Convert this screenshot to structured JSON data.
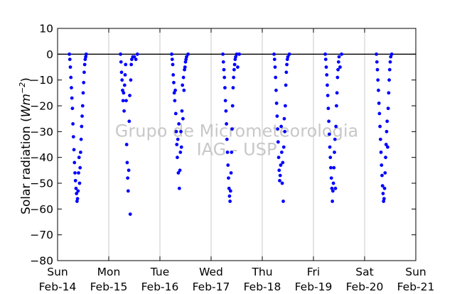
{
  "chart_data": {
    "type": "scatter",
    "ylabel_prefix": "Solar radiation (",
    "ylabel_unit": "Wm",
    "ylabel_exp": "−2",
    "ylabel_suffix": ")",
    "xlabel": "",
    "ylim": [
      -80,
      10
    ],
    "yticks": [
      10,
      0,
      -10,
      -20,
      -30,
      -40,
      -50,
      -60,
      -70,
      -80
    ],
    "xlim": [
      0,
      7
    ],
    "xticks": [
      {
        "x": 0,
        "day": "Sun",
        "date": "Feb-14"
      },
      {
        "x": 1,
        "day": "Mon",
        "date": "Feb-15"
      },
      {
        "x": 2,
        "day": "Tue",
        "date": "Feb-16"
      },
      {
        "x": 3,
        "day": "Wed",
        "date": "Feb-17"
      },
      {
        "x": 4,
        "day": "Thu",
        "date": "Feb-18"
      },
      {
        "x": 5,
        "day": "Fri",
        "date": "Feb-19"
      },
      {
        "x": 6,
        "day": "Sat",
        "date": "Feb-20"
      },
      {
        "x": 7,
        "day": "Sun",
        "date": "Feb-21"
      }
    ],
    "grid": "vertical",
    "zero_line": 0,
    "marker_color": "#0000ff",
    "watermark": [
      "Grupo de Micrometeorologia",
      "IAG - USP"
    ],
    "series": [
      {
        "points": [
          [
            0.23,
            0
          ],
          [
            0.24,
            -2
          ],
          [
            0.25,
            -5
          ],
          [
            0.26,
            -9
          ],
          [
            0.27,
            -13
          ],
          [
            0.28,
            -17
          ],
          [
            0.29,
            -21
          ],
          [
            0.3,
            -27
          ],
          [
            0.31,
            -32
          ],
          [
            0.32,
            -37
          ],
          [
            0.33,
            -42
          ],
          [
            0.34,
            -46
          ],
          [
            0.35,
            -49
          ],
          [
            0.36,
            -52
          ],
          [
            0.37,
            -54
          ],
          [
            0.38,
            -57
          ],
          [
            0.39,
            -56
          ],
          [
            0.4,
            -53
          ],
          [
            0.41,
            -46
          ],
          [
            0.42,
            -40
          ],
          [
            0.43,
            -50
          ],
          [
            0.44,
            -44
          ],
          [
            0.45,
            -38
          ],
          [
            0.46,
            -33
          ],
          [
            0.47,
            -28
          ],
          [
            0.48,
            -24
          ],
          [
            0.49,
            -20
          ],
          [
            0.5,
            -15
          ],
          [
            0.51,
            -11
          ],
          [
            0.52,
            -7
          ],
          [
            0.53,
            -4
          ],
          [
            0.54,
            -2
          ],
          [
            0.55,
            -1
          ],
          [
            0.56,
            0
          ],
          [
            1.23,
            0
          ],
          [
            1.24,
            -3
          ],
          [
            1.25,
            -7
          ],
          [
            1.26,
            -10
          ],
          [
            1.27,
            -14
          ],
          [
            1.28,
            -18
          ],
          [
            1.29,
            -15
          ],
          [
            1.3,
            -22
          ],
          [
            1.31,
            -12
          ],
          [
            1.32,
            -8
          ],
          [
            1.33,
            -4
          ],
          [
            1.34,
            -18
          ],
          [
            1.35,
            -35
          ],
          [
            1.36,
            -42
          ],
          [
            1.37,
            -48
          ],
          [
            1.38,
            -53
          ],
          [
            1.39,
            -45
          ],
          [
            1.4,
            -26
          ],
          [
            1.41,
            -16
          ],
          [
            1.42,
            -62
          ],
          [
            1.43,
            -10
          ],
          [
            1.44,
            -4
          ],
          [
            1.45,
            -2
          ],
          [
            1.47,
            -1
          ],
          [
            1.5,
            -1
          ],
          [
            1.53,
            -2
          ],
          [
            1.56,
            0
          ],
          [
            2.23,
            0
          ],
          [
            2.24,
            -2
          ],
          [
            2.25,
            -4
          ],
          [
            2.26,
            -8
          ],
          [
            2.27,
            -11
          ],
          [
            2.28,
            -15
          ],
          [
            2.29,
            -18
          ],
          [
            2.3,
            -14
          ],
          [
            2.31,
            -23
          ],
          [
            2.32,
            -30
          ],
          [
            2.33,
            -35
          ],
          [
            2.34,
            -40
          ],
          [
            2.35,
            -33
          ],
          [
            2.36,
            -46
          ],
          [
            2.37,
            -27
          ],
          [
            2.38,
            -52
          ],
          [
            2.39,
            -45
          ],
          [
            2.4,
            -38
          ],
          [
            2.41,
            -30
          ],
          [
            2.42,
            -36
          ],
          [
            2.43,
            -22
          ],
          [
            2.44,
            -12
          ],
          [
            2.45,
            -25
          ],
          [
            2.46,
            -9
          ],
          [
            2.47,
            -14
          ],
          [
            2.48,
            -6
          ],
          [
            2.49,
            -5
          ],
          [
            2.5,
            -3
          ],
          [
            2.51,
            -2
          ],
          [
            2.52,
            -1
          ],
          [
            2.55,
            0
          ],
          [
            3.23,
            0
          ],
          [
            3.24,
            -3
          ],
          [
            3.25,
            -6
          ],
          [
            3.26,
            -9
          ],
          [
            3.27,
            -13
          ],
          [
            3.28,
            -18
          ],
          [
            3.29,
            -22
          ],
          [
            3.3,
            -27
          ],
          [
            3.31,
            -33
          ],
          [
            3.32,
            -38
          ],
          [
            3.33,
            -43
          ],
          [
            3.34,
            -48
          ],
          [
            3.35,
            -52
          ],
          [
            3.36,
            -55
          ],
          [
            3.37,
            -57
          ],
          [
            3.38,
            -53
          ],
          [
            3.39,
            -46
          ],
          [
            3.4,
            -38
          ],
          [
            3.41,
            -29
          ],
          [
            3.42,
            -20
          ],
          [
            3.43,
            -13
          ],
          [
            3.44,
            -9
          ],
          [
            3.45,
            -6
          ],
          [
            3.46,
            -4
          ],
          [
            3.47,
            -2
          ],
          [
            3.48,
            -1
          ],
          [
            3.5,
            0
          ],
          [
            3.52,
            -5
          ],
          [
            3.55,
            0
          ],
          [
            4.23,
            0
          ],
          [
            4.24,
            -2
          ],
          [
            4.25,
            -5
          ],
          [
            4.26,
            -9
          ],
          [
            4.27,
            -14
          ],
          [
            4.28,
            -19
          ],
          [
            4.29,
            -24
          ],
          [
            4.3,
            -29
          ],
          [
            4.31,
            -34
          ],
          [
            4.32,
            -40
          ],
          [
            4.33,
            -45
          ],
          [
            4.34,
            -49
          ],
          [
            4.35,
            -47
          ],
          [
            4.36,
            -43
          ],
          [
            4.37,
            -28
          ],
          [
            4.38,
            -38
          ],
          [
            4.39,
            -50
          ],
          [
            4.4,
            -42
          ],
          [
            4.41,
            -57
          ],
          [
            4.42,
            -36
          ],
          [
            4.43,
            -25
          ],
          [
            4.44,
            -30
          ],
          [
            4.45,
            -20
          ],
          [
            4.46,
            -12
          ],
          [
            4.47,
            -7
          ],
          [
            4.48,
            -4
          ],
          [
            4.49,
            -2
          ],
          [
            4.5,
            -1
          ],
          [
            4.53,
            0
          ],
          [
            5.23,
            0
          ],
          [
            5.24,
            -2
          ],
          [
            5.25,
            -5
          ],
          [
            5.26,
            -8
          ],
          [
            5.27,
            -12
          ],
          [
            5.28,
            -16
          ],
          [
            5.29,
            -21
          ],
          [
            5.3,
            -26
          ],
          [
            5.31,
            -31
          ],
          [
            5.32,
            -36
          ],
          [
            5.33,
            -40
          ],
          [
            5.34,
            -44
          ],
          [
            5.35,
            -48
          ],
          [
            5.36,
            -52
          ],
          [
            5.37,
            -57
          ],
          [
            5.38,
            -53
          ],
          [
            5.39,
            -50
          ],
          [
            5.4,
            -44
          ],
          [
            5.41,
            -38
          ],
          [
            5.42,
            -33
          ],
          [
            5.43,
            -52
          ],
          [
            5.44,
            -28
          ],
          [
            5.45,
            -20
          ],
          [
            5.46,
            -15
          ],
          [
            5.47,
            -9
          ],
          [
            5.48,
            -6
          ],
          [
            5.49,
            -3
          ],
          [
            5.5,
            -1
          ],
          [
            5.52,
            -5
          ],
          [
            5.55,
            0
          ],
          [
            6.23,
            0
          ],
          [
            6.24,
            -3
          ],
          [
            6.25,
            -6
          ],
          [
            6.26,
            -10
          ],
          [
            6.27,
            -14
          ],
          [
            6.28,
            -19
          ],
          [
            6.29,
            -23
          ],
          [
            6.3,
            -28
          ],
          [
            6.31,
            -33
          ],
          [
            6.32,
            -38
          ],
          [
            6.33,
            -43
          ],
          [
            6.34,
            -47
          ],
          [
            6.35,
            -51
          ],
          [
            6.36,
            -54
          ],
          [
            6.37,
            -57
          ],
          [
            6.38,
            -56
          ],
          [
            6.39,
            -52
          ],
          [
            6.4,
            -46
          ],
          [
            6.41,
            -40
          ],
          [
            6.42,
            -35
          ],
          [
            6.43,
            -30
          ],
          [
            6.44,
            -26
          ],
          [
            6.45,
            -36
          ],
          [
            6.46,
            -21
          ],
          [
            6.47,
            -15
          ],
          [
            6.48,
            -10
          ],
          [
            6.49,
            -6
          ],
          [
            6.5,
            -3
          ],
          [
            6.51,
            -1
          ],
          [
            6.53,
            0
          ]
        ]
      }
    ]
  }
}
